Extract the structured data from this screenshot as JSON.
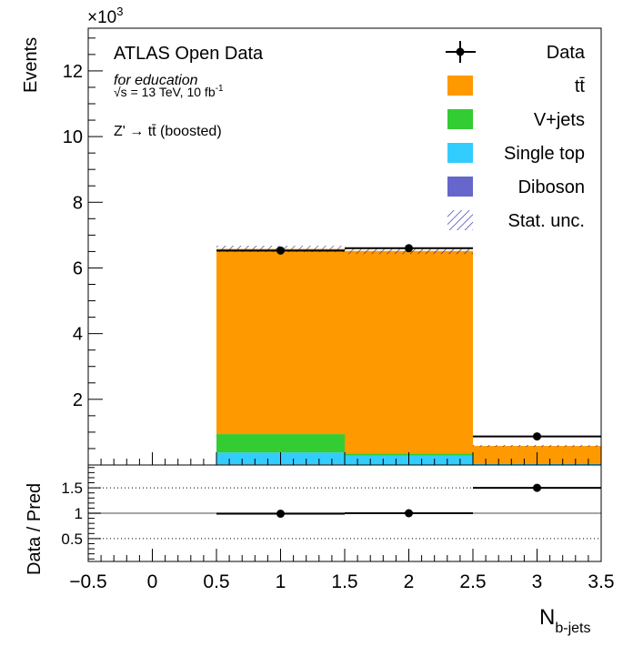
{
  "chart_data": [
    {
      "type": "stacked_bar",
      "panel": "main",
      "labels": {
        "experiment": "ATLAS Open Data",
        "education": "for education",
        "energy_prefix": "√s = 13 TeV, 10 fb",
        "energy_sup": "-1",
        "channel": "Z' → tt̄ (boosted)"
      },
      "ylabel": "Events",
      "yscale_label": "×10",
      "yscale_exp": "3",
      "ylim": [
        0,
        13300
      ],
      "xlim": [
        -0.5,
        3.5
      ],
      "yticks": [
        {
          "value": 2000,
          "label": "2"
        },
        {
          "value": 4000,
          "label": "4"
        },
        {
          "value": 6000,
          "label": "6"
        },
        {
          "value": 8000,
          "label": "8"
        },
        {
          "value": 10000,
          "label": "10"
        },
        {
          "value": 12000,
          "label": "12"
        }
      ],
      "bin_edges": [
        0.5,
        1.5,
        2.5,
        3.5
      ],
      "stack": [
        {
          "name": "Diboson",
          "color": "#6666cc",
          "values": [
            20,
            10,
            0
          ]
        },
        {
          "name": "Single top",
          "color": "#33ccff",
          "values": [
            360,
            280,
            40
          ]
        },
        {
          "name": "V+jets",
          "color": "#33cc33",
          "values": [
            560,
            60,
            0
          ]
        },
        {
          "name": "tt̄",
          "color": "#ff9900",
          "values": [
            5640,
            6170,
            540
          ]
        }
      ],
      "data": {
        "name": "Data",
        "points": [
          {
            "x": 1,
            "y": 6530
          },
          {
            "x": 2,
            "y": 6600
          },
          {
            "x": 3,
            "y": 870
          }
        ]
      },
      "legend": {
        "placement": "top-right",
        "entries": [
          {
            "label": "Data",
            "kind": "marker"
          },
          {
            "label": "tt̄",
            "color": "#ff9900"
          },
          {
            "label": "V+jets",
            "color": "#33cc33"
          },
          {
            "label": "Single top",
            "color": "#33ccff"
          },
          {
            "label": "Diboson",
            "color": "#6666cc"
          },
          {
            "label": "Stat. unc.",
            "kind": "hatch"
          }
        ]
      }
    },
    {
      "type": "ratio",
      "panel": "ratio",
      "ylabel": "Data / Pred",
      "xlabel": "N",
      "xlabel_sub": "b-jets",
      "ylim": [
        0.05,
        1.95
      ],
      "yticks": [
        {
          "value": 0.5,
          "label": "0.5"
        },
        {
          "value": 1,
          "label": "1"
        },
        {
          "value": 1.5,
          "label": "1.5"
        }
      ],
      "xticks": [
        {
          "value": -0.5,
          "label": "−0.5"
        },
        {
          "value": 0,
          "label": "0"
        },
        {
          "value": 0.5,
          "label": "0.5"
        },
        {
          "value": 1,
          "label": "1"
        },
        {
          "value": 1.5,
          "label": "1.5"
        },
        {
          "value": 2,
          "label": "2"
        },
        {
          "value": 2.5,
          "label": "2.5"
        },
        {
          "value": 3,
          "label": "3"
        },
        {
          "value": 3.5,
          "label": "3.5"
        }
      ],
      "points": [
        {
          "x": 1,
          "y": 0.99
        },
        {
          "x": 2,
          "y": 1.0
        },
        {
          "x": 3,
          "y": 1.5
        }
      ],
      "dotted_lines": [
        0.5,
        1.5
      ],
      "reference_line": 1
    }
  ]
}
